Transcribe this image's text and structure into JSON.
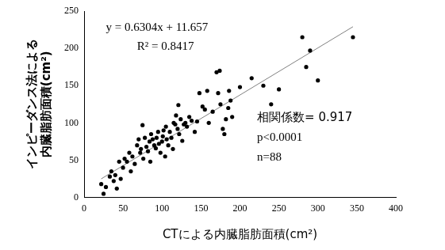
{
  "chart_data": {
    "type": "scatter",
    "x_label": "CTによる内臓脂肪面積(cm²)",
    "y_label": [
      "インピーダンス法による",
      "内臓脂肪面積(cm²)"
    ],
    "series": [
      {
        "type": "scatter",
        "color": "#000000",
        "marker": "circle",
        "x": [
          22,
          25,
          28,
          33,
          35,
          38,
          40,
          42,
          45,
          47,
          50,
          52,
          55,
          58,
          60,
          62,
          65,
          68,
          70,
          72,
          73,
          75,
          76,
          78,
          80,
          82,
          84,
          85,
          86,
          88,
          90,
          92,
          93,
          95,
          96,
          98,
          100,
          101,
          102,
          104,
          105,
          106,
          108,
          110,
          112,
          114,
          115,
          117,
          118,
          120,
          121,
          122,
          124,
          126,
          128,
          130,
          132,
          135,
          138,
          142,
          145,
          148,
          152,
          155,
          158,
          160,
          165,
          170,
          172,
          174,
          175,
          178,
          180,
          182,
          185,
          186,
          188,
          190,
          200,
          215,
          230,
          240,
          250,
          280,
          285,
          290,
          300,
          345
        ],
        "values": [
          18,
          5,
          14,
          28,
          35,
          22,
          30,
          12,
          48,
          25,
          40,
          52,
          48,
          60,
          35,
          55,
          45,
          70,
          78,
          60,
          65,
          97,
          52,
          80,
          68,
          62,
          75,
          48,
          85,
          78,
          70,
          66,
          80,
          88,
          72,
          60,
          75,
          82,
          90,
          55,
          95,
          78,
          70,
          88,
          80,
          65,
          100,
          98,
          110,
          92,
          124,
          85,
          105,
          76,
          98,
          100,
          95,
          108,
          103,
          88,
          102,
          140,
          122,
          118,
          143,
          100,
          115,
          168,
          140,
          170,
          125,
          92,
          85,
          105,
          120,
          143,
          130,
          108,
          148,
          160,
          150,
          125,
          145,
          215,
          175,
          197,
          157,
          215
        ]
      },
      {
        "type": "line",
        "color": "#808080",
        "line_style": "solid",
        "x": [
          22,
          345
        ],
        "values": [
          25,
          229
        ]
      }
    ],
    "annotations": [
      "y = 0.6304x + 11.657",
      "R² = 0.8417",
      "相関係数= 0.917",
      "p<0.0001",
      "n=88"
    ],
    "xlim": [
      0,
      400
    ],
    "xticks": [
      0,
      50,
      100,
      150,
      200,
      250,
      300,
      350,
      400
    ],
    "ylim": [
      0,
      250
    ],
    "yticks": [
      0,
      50,
      100,
      150,
      200,
      250
    ],
    "grid": false
  }
}
